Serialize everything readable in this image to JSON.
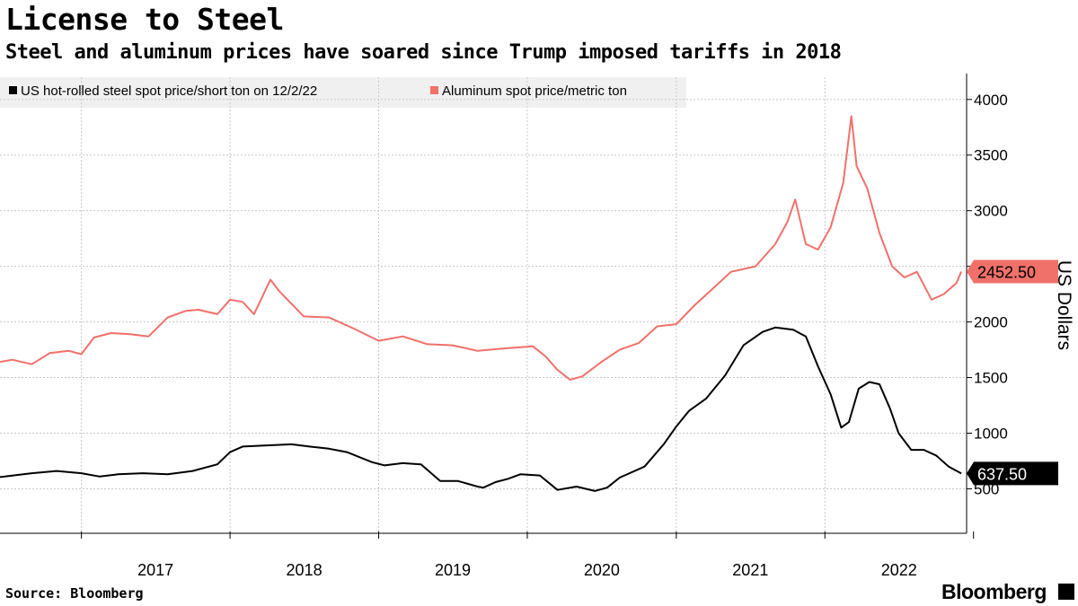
{
  "header": {
    "title": "License to Steel",
    "subtitle": "Steel and aluminum prices have soared since Trump imposed tariffs in 2018"
  },
  "legend": {
    "steel_label": "US hot-rolled steel spot price/short ton on 12/2/22",
    "aluminum_label": "Aluminum spot price/metric ton"
  },
  "footer": {
    "source": "Source: Bloomberg",
    "brand": "Bloomberg"
  },
  "chart_data": {
    "type": "line",
    "title": "License to Steel",
    "subtitle": "Steel and aluminum prices have soared since Trump imposed tariffs in 2018",
    "ylabel": "US Dollars",
    "xlabel": "",
    "ylim": [
      100,
      4200
    ],
    "xlim": [
      "2016-06-15",
      "2022-12-15"
    ],
    "y_axis_position": "right",
    "yticks": [
      500,
      1000,
      1500,
      2000,
      2500,
      3000,
      3500,
      4000
    ],
    "xtick_labels": [
      "2017",
      "2018",
      "2019",
      "2020",
      "2021",
      "2022"
    ],
    "grid": true,
    "legend_position": "top-left",
    "series": [
      {
        "name": "US hot-rolled steel spot price/short ton on 12/2/22",
        "color": "#000000",
        "last_value_label": "637.50",
        "points": [
          [
            "2016-06-15",
            605
          ],
          [
            "2016-09-01",
            640
          ],
          [
            "2016-11-01",
            660
          ],
          [
            "2017-01-01",
            640
          ],
          [
            "2017-02-15",
            610
          ],
          [
            "2017-04-01",
            630
          ],
          [
            "2017-06-01",
            640
          ],
          [
            "2017-08-01",
            630
          ],
          [
            "2017-10-01",
            660
          ],
          [
            "2017-12-01",
            720
          ],
          [
            "2018-01-01",
            830
          ],
          [
            "2018-02-01",
            880
          ],
          [
            "2018-04-01",
            890
          ],
          [
            "2018-06-01",
            900
          ],
          [
            "2018-07-15",
            880
          ],
          [
            "2018-09-01",
            860
          ],
          [
            "2018-10-15",
            830
          ],
          [
            "2018-12-15",
            740
          ],
          [
            "2019-01-15",
            710
          ],
          [
            "2019-03-01",
            730
          ],
          [
            "2019-04-15",
            720
          ],
          [
            "2019-06-01",
            570
          ],
          [
            "2019-07-15",
            570
          ],
          [
            "2019-09-01",
            520
          ],
          [
            "2019-09-15",
            510
          ],
          [
            "2019-10-15",
            560
          ],
          [
            "2019-11-15",
            590
          ],
          [
            "2019-12-15",
            630
          ],
          [
            "2020-02-01",
            620
          ],
          [
            "2020-03-15",
            490
          ],
          [
            "2020-05-01",
            520
          ],
          [
            "2020-06-15",
            480
          ],
          [
            "2020-07-15",
            510
          ],
          [
            "2020-08-15",
            600
          ],
          [
            "2020-10-15",
            700
          ],
          [
            "2020-12-01",
            900
          ],
          [
            "2021-01-01",
            1060
          ],
          [
            "2021-02-01",
            1200
          ],
          [
            "2021-03-15",
            1310
          ],
          [
            "2021-05-01",
            1520
          ],
          [
            "2021-06-15",
            1790
          ],
          [
            "2021-08-01",
            1910
          ],
          [
            "2021-09-01",
            1950
          ],
          [
            "2021-10-15",
            1930
          ],
          [
            "2021-11-15",
            1870
          ],
          [
            "2021-12-15",
            1600
          ],
          [
            "2022-01-15",
            1350
          ],
          [
            "2022-02-10",
            1050
          ],
          [
            "2022-03-01",
            1100
          ],
          [
            "2022-03-25",
            1400
          ],
          [
            "2022-04-20",
            1460
          ],
          [
            "2022-05-15",
            1440
          ],
          [
            "2022-06-10",
            1220
          ],
          [
            "2022-07-01",
            1000
          ],
          [
            "2022-08-01",
            850
          ],
          [
            "2022-09-01",
            850
          ],
          [
            "2022-10-01",
            800
          ],
          [
            "2022-11-01",
            700
          ],
          [
            "2022-12-02",
            637.5
          ]
        ]
      },
      {
        "name": "Aluminum spot price/metric ton",
        "color": "#f0706a",
        "last_value_label": "2452.50",
        "points": [
          [
            "2016-06-15",
            1640
          ],
          [
            "2016-07-15",
            1660
          ],
          [
            "2016-09-01",
            1620
          ],
          [
            "2016-10-15",
            1720
          ],
          [
            "2016-12-01",
            1740
          ],
          [
            "2017-01-01",
            1710
          ],
          [
            "2017-02-01",
            1860
          ],
          [
            "2017-03-15",
            1900
          ],
          [
            "2017-05-01",
            1890
          ],
          [
            "2017-06-15",
            1870
          ],
          [
            "2017-08-01",
            2040
          ],
          [
            "2017-09-15",
            2100
          ],
          [
            "2017-10-15",
            2110
          ],
          [
            "2017-12-01",
            2070
          ],
          [
            "2018-01-01",
            2200
          ],
          [
            "2018-02-01",
            2180
          ],
          [
            "2018-03-01",
            2070
          ],
          [
            "2018-04-10",
            2380
          ],
          [
            "2018-05-01",
            2280
          ],
          [
            "2018-07-01",
            2050
          ],
          [
            "2018-09-01",
            2040
          ],
          [
            "2018-11-01",
            1940
          ],
          [
            "2019-01-01",
            1830
          ],
          [
            "2019-03-01",
            1870
          ],
          [
            "2019-05-01",
            1800
          ],
          [
            "2019-07-01",
            1790
          ],
          [
            "2019-09-01",
            1740
          ],
          [
            "2019-11-01",
            1760
          ],
          [
            "2020-01-15",
            1780
          ],
          [
            "2020-02-15",
            1690
          ],
          [
            "2020-03-15",
            1570
          ],
          [
            "2020-04-15",
            1480
          ],
          [
            "2020-05-15",
            1510
          ],
          [
            "2020-07-01",
            1640
          ],
          [
            "2020-08-15",
            1750
          ],
          [
            "2020-10-01",
            1810
          ],
          [
            "2020-11-15",
            1960
          ],
          [
            "2021-01-01",
            1980
          ],
          [
            "2021-02-15",
            2150
          ],
          [
            "2021-04-01",
            2300
          ],
          [
            "2021-05-15",
            2450
          ],
          [
            "2021-07-15",
            2500
          ],
          [
            "2021-09-01",
            2700
          ],
          [
            "2021-10-01",
            2900
          ],
          [
            "2021-10-20",
            3100
          ],
          [
            "2021-11-15",
            2700
          ],
          [
            "2021-12-15",
            2650
          ],
          [
            "2022-01-15",
            2850
          ],
          [
            "2022-02-15",
            3250
          ],
          [
            "2022-03-07",
            3850
          ],
          [
            "2022-03-20",
            3400
          ],
          [
            "2022-04-15",
            3200
          ],
          [
            "2022-05-15",
            2800
          ],
          [
            "2022-06-15",
            2500
          ],
          [
            "2022-07-15",
            2400
          ],
          [
            "2022-08-15",
            2450
          ],
          [
            "2022-09-20",
            2200
          ],
          [
            "2022-10-20",
            2250
          ],
          [
            "2022-11-20",
            2350
          ],
          [
            "2022-12-02",
            2452.5
          ]
        ]
      }
    ]
  }
}
